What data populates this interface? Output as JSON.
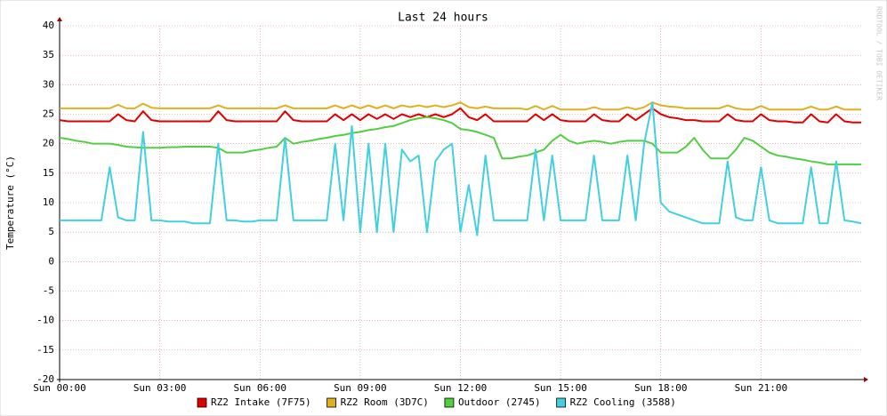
{
  "chart_data": {
    "type": "line",
    "title": "Last 24 hours",
    "y_label": "Temperature (°C)",
    "watermark": "RRDTOOL / TOBI OETIKER",
    "xlim": [
      0,
      24
    ],
    "ylim": [
      -20,
      40
    ],
    "xticks": [
      {
        "value": 0,
        "label": "Sun 00:00"
      },
      {
        "value": 3,
        "label": "Sun 03:00"
      },
      {
        "value": 6,
        "label": "Sun 06:00"
      },
      {
        "value": 9,
        "label": "Sun 09:00"
      },
      {
        "value": 12,
        "label": "Sun 12:00"
      },
      {
        "value": 15,
        "label": "Sun 15:00"
      },
      {
        "value": 18,
        "label": "Sun 18:00"
      },
      {
        "value": 21,
        "label": "Sun 21:00"
      }
    ],
    "yticks": [
      -20,
      -15,
      -10,
      -5,
      0,
      5,
      10,
      15,
      20,
      25,
      30,
      35,
      40
    ],
    "grid": true,
    "legend": "bottom",
    "x": [
      0,
      0.25,
      0.5,
      0.75,
      1,
      1.25,
      1.5,
      1.75,
      2,
      2.25,
      2.5,
      2.75,
      3,
      3.25,
      3.5,
      3.75,
      4,
      4.25,
      4.5,
      4.75,
      5,
      5.25,
      5.5,
      5.75,
      6,
      6.25,
      6.5,
      6.75,
      7,
      7.25,
      7.5,
      7.75,
      8,
      8.25,
      8.5,
      8.75,
      9,
      9.25,
      9.5,
      9.75,
      10,
      10.25,
      10.5,
      10.75,
      11,
      11.25,
      11.5,
      11.75,
      12,
      12.25,
      12.5,
      12.75,
      13,
      13.25,
      13.5,
      13.75,
      14,
      14.25,
      14.5,
      14.75,
      15,
      15.25,
      15.5,
      15.75,
      16,
      16.25,
      16.5,
      16.75,
      17,
      17.25,
      17.5,
      17.75,
      18,
      18.25,
      18.5,
      18.75,
      19,
      19.25,
      19.5,
      19.75,
      20,
      20.25,
      20.5,
      20.75,
      21,
      21.25,
      21.5,
      21.75,
      22,
      22.25,
      22.5,
      22.75,
      23,
      23.25,
      23.5,
      23.75,
      24
    ],
    "series": [
      {
        "name": "RZ2 Intake (7F75)",
        "color": "#e00000",
        "values": [
          24,
          23.8,
          23.8,
          23.8,
          23.8,
          23.8,
          23.8,
          25,
          24,
          23.8,
          25.5,
          24,
          23.8,
          23.8,
          23.8,
          23.8,
          23.8,
          23.8,
          23.8,
          25.5,
          24,
          23.8,
          23.8,
          23.8,
          23.8,
          23.8,
          23.8,
          25.5,
          24,
          23.8,
          23.8,
          23.8,
          23.8,
          25,
          24,
          25,
          24,
          25,
          24.2,
          25,
          24.2,
          25,
          24.5,
          25,
          24.5,
          25,
          24.5,
          25,
          26,
          24.5,
          24,
          25,
          23.8,
          23.8,
          23.8,
          23.8,
          23.8,
          25,
          24,
          25,
          24,
          23.8,
          23.8,
          23.8,
          25,
          24,
          23.8,
          23.8,
          25,
          24,
          25,
          26,
          25,
          24.5,
          24.3,
          24,
          24,
          23.8,
          23.8,
          23.8,
          25,
          24,
          23.8,
          23.8,
          25,
          24,
          23.8,
          23.8,
          23.6,
          23.6,
          25,
          23.8,
          23.6,
          25,
          23.8,
          23.6,
          23.6
        ]
      },
      {
        "name": "RZ2 Room (3D7C)",
        "color": "#e0b020",
        "values": [
          26,
          26,
          26,
          26,
          26,
          26,
          26,
          26.6,
          26,
          26,
          26.8,
          26.1,
          26,
          26,
          26,
          26,
          26,
          26,
          26,
          26.5,
          26,
          26,
          26,
          26,
          26,
          26,
          26,
          26.5,
          26,
          26,
          26,
          26,
          26,
          26.5,
          26,
          26.5,
          26,
          26.5,
          26,
          26.5,
          26,
          26.5,
          26.2,
          26.5,
          26.2,
          26.5,
          26.2,
          26.5,
          27,
          26.2,
          26,
          26.3,
          26,
          26,
          26,
          26,
          25.8,
          26.4,
          25.8,
          26.4,
          25.8,
          25.8,
          25.8,
          25.8,
          26.2,
          25.8,
          25.8,
          25.8,
          26.2,
          25.8,
          26.2,
          27,
          26.5,
          26.3,
          26.2,
          26,
          26,
          26,
          26,
          26,
          26.5,
          26,
          25.8,
          25.8,
          26.4,
          25.8,
          25.8,
          25.8,
          25.8,
          25.8,
          26.3,
          25.8,
          25.8,
          26.3,
          25.8,
          25.8,
          25.8
        ]
      },
      {
        "name": "Outdoor (2745)",
        "color": "#50d040",
        "values": [
          21,
          20.8,
          20.5,
          20.3,
          20,
          20,
          20,
          19.8,
          19.5,
          19.4,
          19.3,
          19.3,
          19.3,
          19.4,
          19.4,
          19.5,
          19.5,
          19.5,
          19.5,
          19.3,
          18.5,
          18.5,
          18.5,
          18.8,
          19,
          19.3,
          19.5,
          21,
          20,
          20.3,
          20.5,
          20.8,
          21,
          21.3,
          21.5,
          21.8,
          22,
          22.3,
          22.5,
          22.8,
          23,
          23.5,
          24,
          24.3,
          24.5,
          24.3,
          24,
          23.5,
          22.5,
          22.3,
          22,
          21.5,
          21,
          17.5,
          17.5,
          17.8,
          18,
          18.5,
          19,
          20.5,
          21.5,
          20.5,
          20,
          20.3,
          20.5,
          20.3,
          20,
          20.3,
          20.5,
          20.5,
          20.5,
          20,
          18.5,
          18.5,
          18.5,
          19.5,
          21,
          19,
          17.5,
          17.5,
          17.5,
          19,
          21,
          20.5,
          19.5,
          18.5,
          18,
          17.8,
          17.5,
          17.3,
          17,
          16.8,
          16.5,
          16.5,
          16.5,
          16.5,
          16.5
        ]
      },
      {
        "name": "RZ2 Cooling (3588)",
        "color": "#40d0e0",
        "values": [
          7,
          7,
          7,
          7,
          7,
          7,
          16,
          7.5,
          7,
          7,
          22,
          7,
          7,
          6.8,
          6.8,
          6.8,
          6.5,
          6.5,
          6.5,
          20,
          7,
          7,
          6.8,
          6.8,
          7,
          7,
          7,
          21,
          7,
          7,
          7,
          7,
          7,
          20,
          7,
          23,
          5,
          20,
          5,
          20,
          5,
          19,
          17,
          18,
          5,
          17,
          19,
          20,
          5,
          13,
          4.5,
          18,
          7,
          7,
          7,
          7,
          7,
          19,
          7,
          18,
          7,
          7,
          7,
          7,
          18,
          7,
          7,
          7,
          18,
          7,
          20,
          27,
          10,
          8.5,
          8,
          7.5,
          7,
          6.5,
          6.5,
          6.5,
          17,
          7.5,
          7,
          7,
          16,
          7,
          6.5,
          6.5,
          6.5,
          6.5,
          16,
          6.5,
          6.5,
          17,
          7,
          6.8,
          6.5
        ]
      }
    ]
  }
}
